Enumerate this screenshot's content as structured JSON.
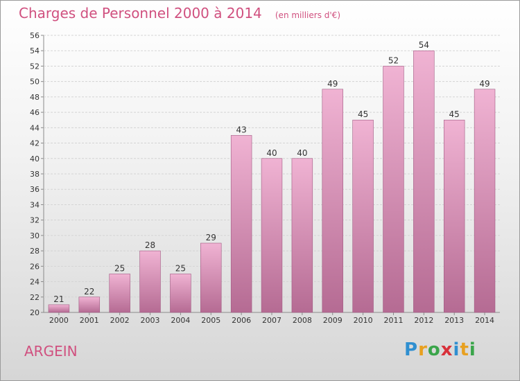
{
  "header": {
    "title": "Charges de Personnel 2000 à 2014",
    "subtitle": "(en milliers d'€)"
  },
  "commune": "ARGEIN",
  "logo": {
    "letters": [
      "P",
      "r",
      "o",
      "x",
      "i",
      "t",
      "i"
    ],
    "colors": [
      "#2f8fd0",
      "#e8a020",
      "#3aa54a",
      "#d8303a",
      "#2f8fd0",
      "#e8a020",
      "#3aa54a"
    ]
  },
  "colors": {
    "bar_top": "#f0b3d3",
    "bar_bottom": "#b56b93",
    "bar_edge": "#a05a82",
    "accent": "#d0507f"
  },
  "chart_data": {
    "type": "bar",
    "title": "Charges de Personnel 2000 à 2014",
    "subtitle": "(en milliers d'€)",
    "categories": [
      "2000",
      "2001",
      "2002",
      "2003",
      "2004",
      "2005",
      "2006",
      "2007",
      "2008",
      "2009",
      "2010",
      "2011",
      "2012",
      "2013",
      "2014"
    ],
    "values": [
      21,
      22,
      25,
      28,
      25,
      29,
      43,
      40,
      40,
      49,
      45,
      52,
      54,
      45,
      49
    ],
    "ylim": [
      20,
      56
    ],
    "yticks": [
      20,
      22,
      24,
      26,
      28,
      30,
      32,
      34,
      36,
      38,
      40,
      42,
      44,
      46,
      48,
      50,
      52,
      54,
      56
    ],
    "grid": true,
    "data_labels": true
  }
}
